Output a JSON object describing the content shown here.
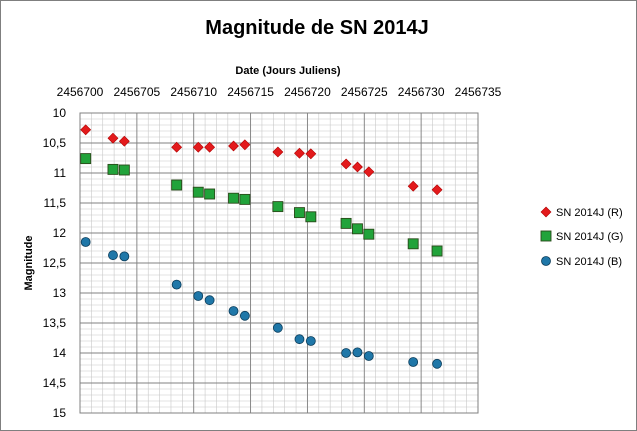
{
  "chart_data": {
    "type": "scatter",
    "title": "Magnitude de SN 2014J",
    "xlabel": "Date (Jours Juliens)",
    "ylabel": "Magnitude",
    "xlim": [
      2456700,
      2456735
    ],
    "ylim": [
      10,
      15
    ],
    "y_inverted": true,
    "x_axis_position": "top",
    "x_ticks": [
      "2456700",
      "2456705",
      "2456710",
      "2456715",
      "2456720",
      "2456725",
      "2456730",
      "2456735"
    ],
    "y_ticks": [
      "10",
      "10,5",
      "11",
      "11,5",
      "12",
      "12,5",
      "13",
      "13,5",
      "14",
      "14,5",
      "15"
    ],
    "grid": true,
    "legend_position": "right",
    "series": [
      {
        "name": "SN 2014J (R)",
        "marker": "diamond",
        "color": "#e31a1c",
        "x": [
          2456700.5,
          2456702.9,
          2456703.9,
          2456708.5,
          2456710.4,
          2456711.4,
          2456713.5,
          2456714.5,
          2456717.4,
          2456719.3,
          2456720.3,
          2456723.4,
          2456724.4,
          2456725.4,
          2456729.3,
          2456731.4
        ],
        "y": [
          10.28,
          10.42,
          10.47,
          10.57,
          10.57,
          10.57,
          10.55,
          10.53,
          10.65,
          10.67,
          10.68,
          10.85,
          10.9,
          10.98,
          11.22,
          11.28
        ]
      },
      {
        "name": "SN 2014J (G)",
        "marker": "square",
        "color": "#21a33a",
        "x": [
          2456700.5,
          2456702.9,
          2456703.9,
          2456708.5,
          2456710.4,
          2456711.4,
          2456713.5,
          2456714.5,
          2456717.4,
          2456719.3,
          2456720.3,
          2456723.4,
          2456724.4,
          2456725.4,
          2456729.3,
          2456731.4
        ],
        "y": [
          10.76,
          10.94,
          10.95,
          11.2,
          11.32,
          11.35,
          11.42,
          11.44,
          11.56,
          11.66,
          11.73,
          11.84,
          11.93,
          12.02,
          12.18,
          12.3
        ]
      },
      {
        "name": "SN 2014J (B)",
        "marker": "circle",
        "color": "#1f77a8",
        "x": [
          2456700.5,
          2456702.9,
          2456703.9,
          2456708.5,
          2456710.4,
          2456711.4,
          2456713.5,
          2456714.5,
          2456717.4,
          2456719.3,
          2456720.3,
          2456723.4,
          2456724.4,
          2456725.4,
          2456729.3,
          2456731.4
        ],
        "y": [
          12.15,
          12.37,
          12.39,
          12.86,
          13.05,
          13.12,
          13.3,
          13.38,
          13.58,
          13.77,
          13.8,
          14.0,
          13.99,
          14.05,
          14.15,
          14.18
        ]
      }
    ]
  }
}
